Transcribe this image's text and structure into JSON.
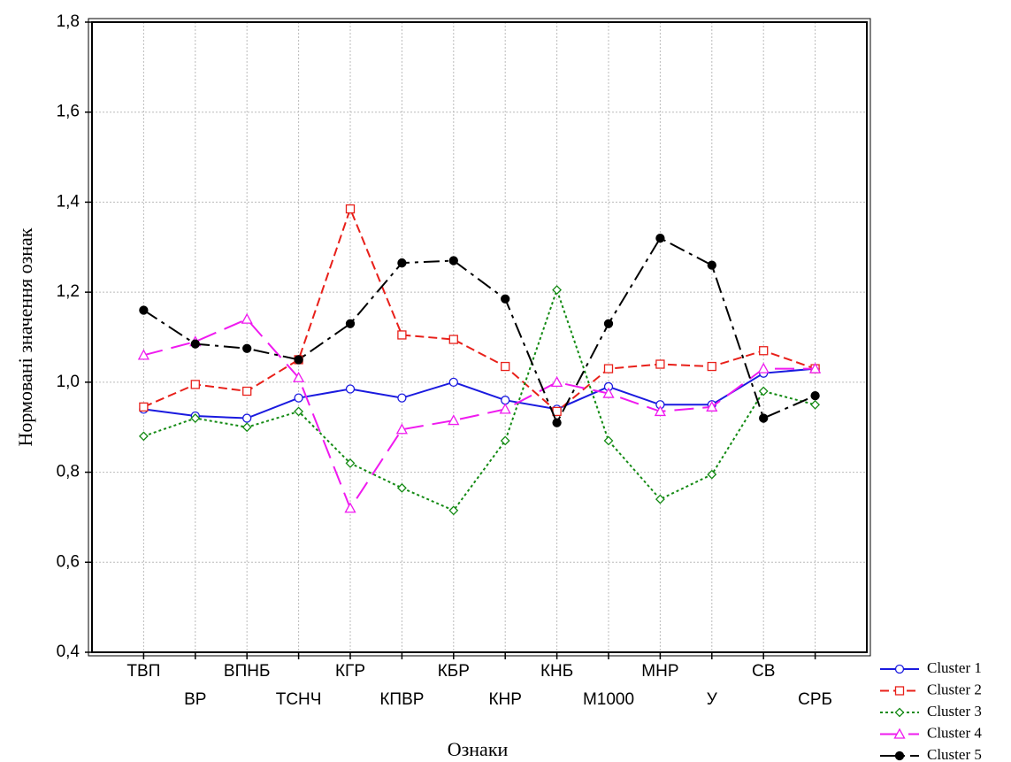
{
  "chart_data": {
    "type": "line",
    "x_label": "Ознаки",
    "y_label": "Нормовані значення ознак",
    "categories": [
      "ТВП",
      "ВР",
      "ВПНБ",
      "ТСНЧ",
      "КГР",
      "КПВР",
      "КБР",
      "КНР",
      "КНБ",
      "М1000",
      "МНР",
      "У",
      "СВ",
      "СРБ"
    ],
    "ylim": [
      0.4,
      1.8
    ],
    "yticks": [
      {
        "value": 0.4,
        "label": "0,4"
      },
      {
        "value": 0.6,
        "label": "0,6"
      },
      {
        "value": 0.8,
        "label": "0,8"
      },
      {
        "value": 1.0,
        "label": "1,0"
      },
      {
        "value": 1.2,
        "label": "1,2"
      },
      {
        "value": 1.4,
        "label": "1,4"
      },
      {
        "value": 1.6,
        "label": "1,6"
      },
      {
        "value": 1.8,
        "label": "1,8"
      }
    ],
    "grid": true,
    "legend": "bottom-right",
    "series": [
      {
        "name": "Cluster 1",
        "color": "#1a1adf",
        "marker": "circle",
        "line_style": "solid",
        "values": [
          0.94,
          0.925,
          0.92,
          0.965,
          0.985,
          0.965,
          1.0,
          0.96,
          0.94,
          0.99,
          0.95,
          0.95,
          1.02,
          1.03
        ]
      },
      {
        "name": "Cluster 2",
        "color": "#e8201a",
        "marker": "square",
        "line_style": "dashed",
        "values": [
          0.945,
          0.995,
          0.98,
          1.05,
          1.385,
          1.105,
          1.095,
          1.035,
          0.935,
          1.03,
          1.04,
          1.035,
          1.07,
          1.03
        ]
      },
      {
        "name": "Cluster 3",
        "color": "#138a13",
        "marker": "diamond",
        "line_style": "dotted",
        "values": [
          0.88,
          0.92,
          0.9,
          0.935,
          0.82,
          0.765,
          0.715,
          0.87,
          1.205,
          0.87,
          0.74,
          0.795,
          0.98,
          0.95
        ]
      },
      {
        "name": "Cluster 4",
        "color": "#ef1aef",
        "marker": "triangle",
        "line_style": "long-dash",
        "values": [
          1.06,
          1.09,
          1.14,
          1.01,
          0.72,
          0.895,
          0.915,
          0.94,
          1.0,
          0.975,
          0.935,
          0.945,
          1.03,
          1.03
        ]
      },
      {
        "name": "Cluster 5",
        "color": "#000000",
        "marker": "filled-circle",
        "line_style": "dash-dot",
        "values": [
          1.16,
          1.085,
          1.075,
          1.05,
          1.13,
          1.265,
          1.27,
          1.185,
          0.91,
          1.13,
          1.32,
          1.26,
          0.92,
          0.97
        ]
      }
    ]
  }
}
